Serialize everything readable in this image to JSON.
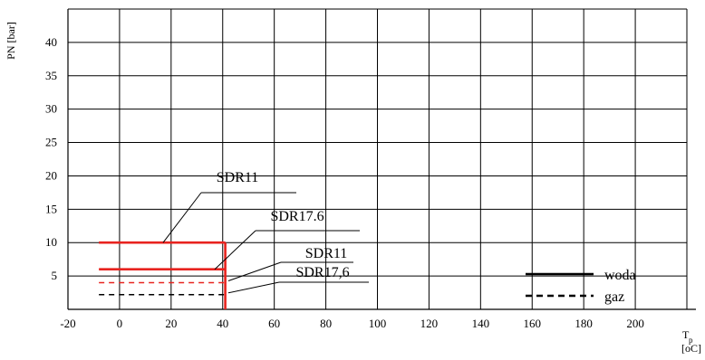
{
  "chart_data": {
    "type": "line",
    "xlabel": "T",
    "xlabel_sub": "p",
    "xunit": "[oC]",
    "ylabel": "PN [bar]",
    "xlim": [
      -20,
      220
    ],
    "ylim": [
      0,
      45
    ],
    "x_ticks": [
      -20,
      0,
      20,
      40,
      60,
      80,
      100,
      120,
      140,
      160,
      180,
      200
    ],
    "y_ticks": [
      5,
      10,
      15,
      20,
      25,
      30,
      35,
      40
    ],
    "grid": true,
    "colors": {
      "red": "#e8231f",
      "black": "#000000"
    },
    "series": [
      {
        "label": "SDR11",
        "medium": "woda",
        "color": "#e8231f",
        "dashed": false,
        "bold": true,
        "x": [
          -8,
          41
        ],
        "y": [
          10,
          10
        ]
      },
      {
        "label": "SDR17.6",
        "medium": "woda",
        "color": "#e8231f",
        "dashed": false,
        "bold": true,
        "x": [
          -8,
          41
        ],
        "y": [
          6,
          6
        ]
      },
      {
        "label": "SDR11",
        "medium": "gaz",
        "color": "#e8231f",
        "dashed": true,
        "bold": false,
        "x": [
          -8,
          41
        ],
        "y": [
          4,
          4
        ]
      },
      {
        "label": "SDR17.6",
        "medium": "gaz",
        "color": "#000000",
        "dashed": true,
        "bold": false,
        "x": [
          -8,
          41
        ],
        "y": [
          2.2,
          2.2
        ]
      }
    ],
    "temperature_limit": {
      "x": 41,
      "color": "#e8231f"
    },
    "annotations": [
      {
        "text": "SDR11",
        "target": 0
      },
      {
        "text": "SDR17.6",
        "target": 1
      },
      {
        "text": "SDR11",
        "target": 2
      },
      {
        "text": "SDR17,6",
        "target": 3
      }
    ],
    "legend": {
      "position": "bottom-right",
      "items": [
        {
          "label": "woda",
          "dashed": false
        },
        {
          "label": "gaz",
          "dashed": true
        }
      ]
    }
  }
}
